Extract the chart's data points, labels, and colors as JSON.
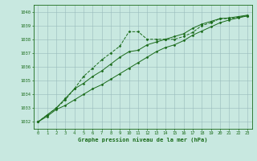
{
  "x": [
    0,
    1,
    2,
    3,
    4,
    5,
    6,
    7,
    8,
    9,
    10,
    11,
    12,
    13,
    14,
    15,
    16,
    17,
    18,
    19,
    20,
    21,
    22,
    23
  ],
  "line1": [
    1032.0,
    1032.5,
    1033.0,
    1033.6,
    1034.4,
    1035.3,
    1035.9,
    1036.5,
    1037.0,
    1037.5,
    1038.55,
    1038.55,
    1038.0,
    1038.0,
    1038.0,
    1038.0,
    1038.2,
    1038.5,
    1039.0,
    1039.2,
    1039.5,
    1039.5,
    1039.6,
    1039.7
  ],
  "line2": [
    1032.0,
    1032.4,
    1032.9,
    1033.2,
    1033.6,
    1034.0,
    1034.4,
    1034.7,
    1035.1,
    1035.5,
    1035.9,
    1036.3,
    1036.7,
    1037.1,
    1037.4,
    1037.6,
    1037.9,
    1038.3,
    1038.6,
    1038.9,
    1039.2,
    1039.4,
    1039.55,
    1039.7
  ],
  "line3": [
    1032.0,
    1032.5,
    1033.0,
    1033.7,
    1034.4,
    1034.8,
    1035.3,
    1035.7,
    1036.2,
    1036.7,
    1037.1,
    1037.2,
    1037.6,
    1037.8,
    1038.0,
    1038.2,
    1038.4,
    1038.8,
    1039.1,
    1039.3,
    1039.5,
    1039.55,
    1039.65,
    1039.75
  ],
  "line_color": "#1a6b1a",
  "bg_color": "#c8e8e0",
  "grid_color": "#99bbbb",
  "xlabel": "Graphe pression niveau de la mer (hPa)",
  "ylim": [
    1031.5,
    1040.5
  ],
  "xlim": [
    -0.5,
    23.5
  ],
  "yticks": [
    1032,
    1033,
    1034,
    1035,
    1036,
    1037,
    1038,
    1039,
    1040
  ],
  "xticks": [
    0,
    1,
    2,
    3,
    4,
    5,
    6,
    7,
    8,
    9,
    10,
    11,
    12,
    13,
    14,
    15,
    16,
    17,
    18,
    19,
    20,
    21,
    22,
    23
  ]
}
